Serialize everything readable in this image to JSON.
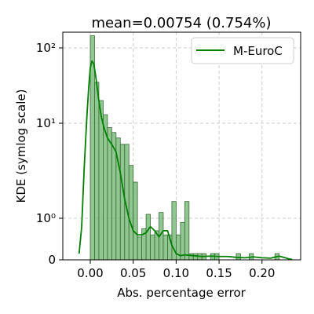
{
  "chart_data": {
    "type": "bar",
    "title": "mean=0.00754 (0.754%)",
    "xlabel": "Abs. percentage error",
    "ylabel": "KDE (symlog scale)",
    "yscale": "symlog",
    "xlim": [
      -0.032,
      0.245
    ],
    "ylim": [
      0,
      160
    ],
    "xticks": [
      0.0,
      0.05,
      0.1,
      0.15,
      0.2
    ],
    "xtick_labels": [
      "0.00",
      "0.05",
      "0.10",
      "0.15",
      "0.20"
    ],
    "yticks": [
      0,
      1,
      10,
      100
    ],
    "ytick_labels": [
      "0",
      "10⁰",
      "10¹",
      "10²"
    ],
    "grid": true,
    "legend_position": "top-right",
    "colors": {
      "histogram_fill": "#74b874",
      "histogram_edge": "#3c6b3c",
      "kde_line": "#008000",
      "grid": "#cccccc"
    },
    "histogram": {
      "bin_width": 0.005,
      "x_start": 0.0,
      "values": [
        145,
        35,
        20,
        13,
        9,
        8,
        7,
        6,
        6,
        3.6,
        2.4,
        0.55,
        0.75,
        1.1,
        0.6,
        0.7,
        1.15,
        0.6,
        0.6,
        1.5,
        0.6,
        0.9,
        1.5,
        0.15,
        0.15,
        0.15,
        0.15,
        0,
        0.15,
        0.15,
        0,
        0,
        0,
        0,
        0.15,
        0,
        0,
        0.15,
        0,
        0,
        0,
        0,
        0,
        0.15,
        0
      ]
    },
    "series": [
      {
        "name": "M-EuroC",
        "x": [
          -0.013,
          -0.01,
          -0.007,
          -0.004,
          -0.002,
          0.0,
          0.002,
          0.004,
          0.006,
          0.008,
          0.01,
          0.013,
          0.016,
          0.02,
          0.025,
          0.03,
          0.035,
          0.04,
          0.045,
          0.05,
          0.055,
          0.06,
          0.065,
          0.07,
          0.075,
          0.08,
          0.085,
          0.09,
          0.095,
          0.1,
          0.105,
          0.11,
          0.115,
          0.12,
          0.13,
          0.14,
          0.15,
          0.16,
          0.17,
          0.18,
          0.19,
          0.2,
          0.21,
          0.22,
          0.23,
          0.235
        ],
        "values": [
          0.15,
          0.8,
          3.5,
          12,
          28,
          55,
          67,
          62,
          45,
          30,
          20,
          12,
          9,
          7,
          6,
          5,
          3,
          1.6,
          1.0,
          0.7,
          0.6,
          0.6,
          0.65,
          0.8,
          0.7,
          0.55,
          0.7,
          0.7,
          0.35,
          0.15,
          0.1,
          0.12,
          0.11,
          0.1,
          0.08,
          0.09,
          0.08,
          0.08,
          0.06,
          0.05,
          0.07,
          0.05,
          0.04,
          0.09,
          0.03,
          0.01
        ]
      }
    ]
  }
}
